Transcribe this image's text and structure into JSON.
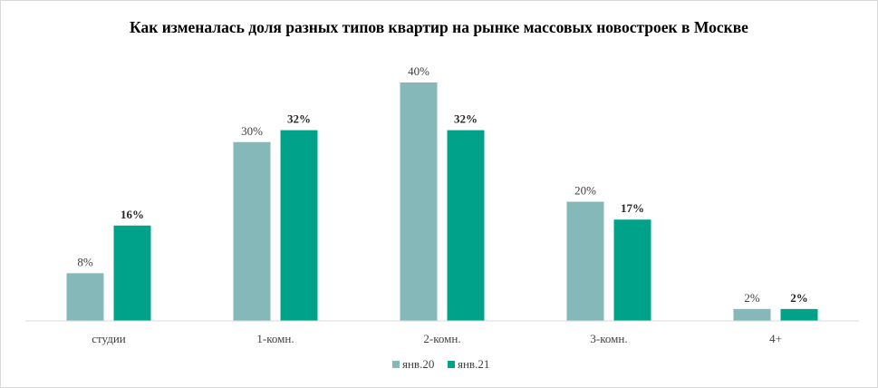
{
  "chart_data": {
    "type": "bar",
    "title": "Как изменалась доля разных типов  квартир на рынке массовых новостроек  в Москве",
    "categories": [
      "студии",
      "1-комн.",
      "2-комн.",
      "3-комн.",
      "4+"
    ],
    "series": [
      {
        "name": "янв.20",
        "values": [
          8,
          30,
          40,
          20,
          2
        ],
        "labels": [
          "8%",
          "30%",
          "40%",
          "20%",
          "2%"
        ],
        "color": "#85b8b9"
      },
      {
        "name": "янв.21",
        "values": [
          16,
          32,
          32,
          17,
          2
        ],
        "labels": [
          "16%",
          "32%",
          "32%",
          "17%",
          "2%"
        ],
        "color": "#00a389"
      }
    ],
    "xlabel": "",
    "ylabel": "",
    "ylim": [
      0,
      40
    ],
    "grid": false,
    "legend": "bottom",
    "axis_color": "#d9d9d9"
  }
}
